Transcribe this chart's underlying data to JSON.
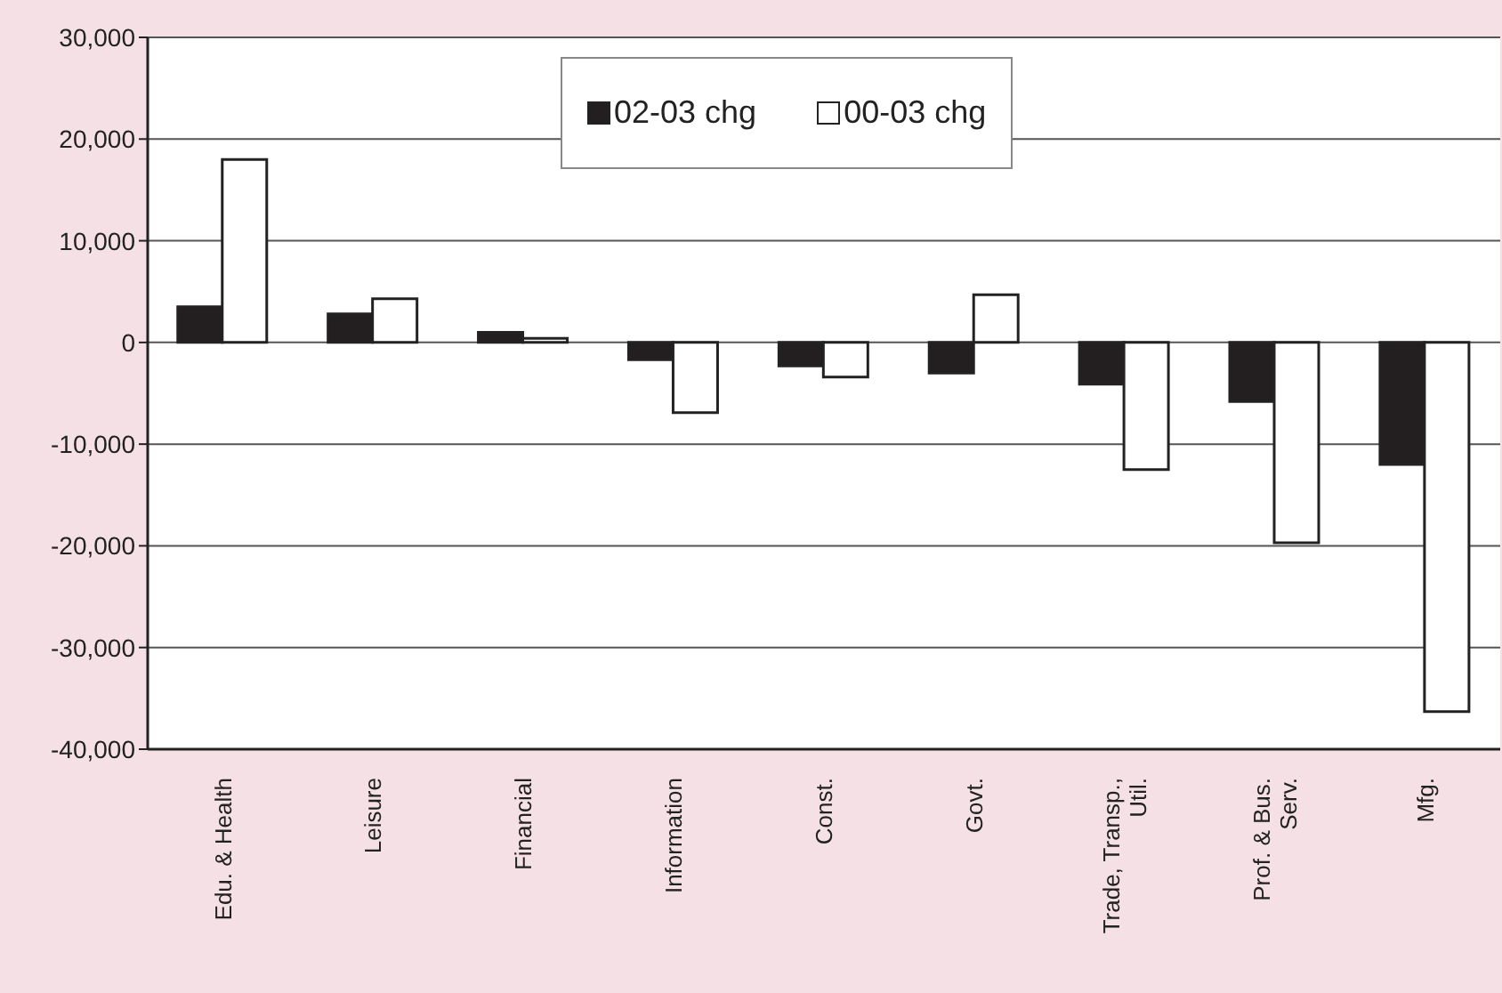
{
  "chart_data": {
    "type": "bar",
    "categories": [
      "Edu. & Health",
      "Leisure",
      "Financial",
      "Information",
      "Const.",
      "Govt.",
      "Trade, Transp., Util.",
      "Prof. & Bus. Serv.",
      "Mfg."
    ],
    "series": [
      {
        "name": "02-03 chg",
        "color": "#231f20",
        "values": [
          3500,
          2800,
          1000,
          -1700,
          -2300,
          -3000,
          -4100,
          -5800,
          -12000
        ]
      },
      {
        "name": "00-03 chg",
        "color": "#ffffff",
        "values": [
          18000,
          4300,
          400,
          -6900,
          -3400,
          4700,
          -12500,
          -19700,
          -36300
        ]
      }
    ],
    "ylim": [
      -40000,
      30000
    ],
    "yticks": [
      {
        "value": -40000,
        "label": "-40,000"
      },
      {
        "value": -30000,
        "label": "-30,000"
      },
      {
        "value": -20000,
        "label": "-20,000"
      },
      {
        "value": -10000,
        "label": "-10,000"
      },
      0,
      {
        "value": 10000,
        "label": "10,000"
      },
      {
        "value": 20000,
        "label": "20,000"
      },
      {
        "value": 30000,
        "label": "30,000"
      }
    ],
    "grid": "y",
    "legend": "top"
  }
}
